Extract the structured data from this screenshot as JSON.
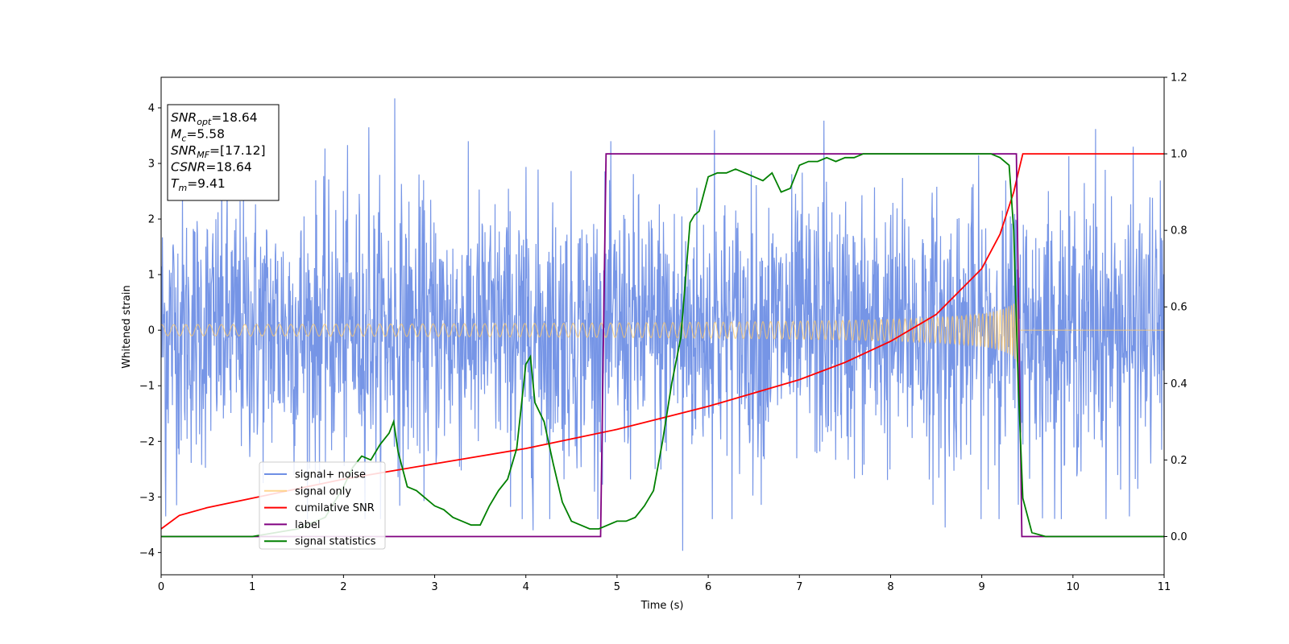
{
  "chart_data": {
    "type": "line",
    "xlabel": "Time (s)",
    "ylabel": "Whitened strain",
    "xlim": [
      0,
      11
    ],
    "ylim": [
      -4.4,
      4.55
    ],
    "y2lim": [
      -0.1,
      1.2
    ],
    "x_ticks": [
      0,
      1,
      2,
      3,
      4,
      5,
      6,
      7,
      8,
      9,
      10,
      11
    ],
    "y_ticks": [
      -4,
      -3,
      -2,
      -1,
      0,
      1,
      2,
      3,
      4
    ],
    "y2_ticks": [
      0.0,
      0.2,
      0.4,
      0.6,
      0.8,
      1.0,
      1.2
    ],
    "grid": false,
    "legend_position": "lower-left",
    "info_box": {
      "lines": [
        {
          "name": "SNR",
          "sub": "opt",
          "value": "=18.64"
        },
        {
          "name": "M",
          "sub": "c",
          "value": "=5.58"
        },
        {
          "name": "SNR",
          "sub": "MF",
          "value": "=[17.12]"
        },
        {
          "name": "CSNR",
          "sub": "",
          "value": "=18.64"
        },
        {
          "name": "T",
          "sub": "m",
          "value": "=9.41"
        }
      ]
    },
    "series": [
      {
        "name": "signal+ noise",
        "color": "#6f8fe5",
        "axis": "left",
        "description_kind": "noise band",
        "envelope": {
          "t_start": 0,
          "t_end": 11,
          "typical_range": [
            -2.4,
            2.4
          ],
          "peaks": [
            {
              "x": 2.28,
              "y": 3.65
            },
            {
              "x": 2.56,
              "y": 4.17
            },
            {
              "x": 7.27,
              "y": 3.77
            },
            {
              "x": 6.07,
              "y": 3.6
            },
            {
              "x": 10.25,
              "y": 3.62
            },
            {
              "x": 8.6,
              "y": 3.3
            },
            {
              "x": 5.72,
              "y": -3.97
            },
            {
              "x": 4.08,
              "y": -3.6
            },
            {
              "x": 8.6,
              "y": -3.55
            },
            {
              "x": 0.05,
              "y": -3.35
            },
            {
              "x": 3.96,
              "y": -3.4
            },
            {
              "x": 10.62,
              "y": -3.35
            }
          ]
        }
      },
      {
        "name": "signal only",
        "color": "#ffc96b",
        "axis": "left",
        "description_kind": "chirp",
        "chirp": {
          "t_start": 0,
          "t_merge": 9.41,
          "amplitude_start": 0.1,
          "amplitude_end": 1.0
        }
      },
      {
        "name": "cumilative SNR",
        "color": "#ff0000",
        "axis": "right",
        "x": [
          0,
          0.2,
          0.5,
          1,
          1.5,
          2,
          2.5,
          3,
          3.5,
          4,
          4.5,
          5,
          5.5,
          6,
          6.5,
          7,
          7.5,
          8,
          8.5,
          9,
          9.2,
          9.35,
          9.41,
          9.45,
          11
        ],
        "y": [
          0.02,
          0.055,
          0.075,
          0.1,
          0.125,
          0.15,
          0.17,
          0.19,
          0.21,
          0.23,
          0.255,
          0.28,
          0.31,
          0.34,
          0.375,
          0.41,
          0.455,
          0.51,
          0.58,
          0.7,
          0.79,
          0.9,
          0.96,
          1.0,
          1.0
        ]
      },
      {
        "name": "label",
        "color": "#800080",
        "axis": "right",
        "x": [
          0,
          4.82,
          4.88,
          9.38,
          9.44,
          11
        ],
        "y": [
          0,
          0,
          1,
          1,
          0,
          0
        ]
      },
      {
        "name": "signal statistics",
        "color": "#008000",
        "axis": "right",
        "x": [
          0,
          1.0,
          1.5,
          1.8,
          2.0,
          2.1,
          2.2,
          2.3,
          2.4,
          2.5,
          2.55,
          2.6,
          2.7,
          2.8,
          2.9,
          3.0,
          3.1,
          3.2,
          3.3,
          3.4,
          3.5,
          3.6,
          3.7,
          3.8,
          3.9,
          4.0,
          4.05,
          4.1,
          4.2,
          4.3,
          4.4,
          4.5,
          4.6,
          4.7,
          4.8,
          4.9,
          5.0,
          5.1,
          5.2,
          5.3,
          5.4,
          5.5,
          5.6,
          5.7,
          5.8,
          5.85,
          5.9,
          6.0,
          6.1,
          6.2,
          6.3,
          6.4,
          6.5,
          6.6,
          6.7,
          6.8,
          6.9,
          7.0,
          7.1,
          7.2,
          7.3,
          7.4,
          7.5,
          7.6,
          7.7,
          7.8,
          7.9,
          8.0,
          8.2,
          8.4,
          8.6,
          8.8,
          9.0,
          9.1,
          9.2,
          9.3,
          9.35,
          9.4,
          9.45,
          9.55,
          9.7,
          11
        ],
        "y": [
          0.0,
          0.0,
          0.02,
          0.05,
          0.13,
          0.18,
          0.21,
          0.2,
          0.24,
          0.27,
          0.3,
          0.22,
          0.13,
          0.12,
          0.1,
          0.08,
          0.07,
          0.05,
          0.04,
          0.03,
          0.03,
          0.08,
          0.12,
          0.15,
          0.23,
          0.45,
          0.47,
          0.35,
          0.3,
          0.19,
          0.09,
          0.04,
          0.03,
          0.02,
          0.02,
          0.03,
          0.04,
          0.04,
          0.05,
          0.08,
          0.12,
          0.25,
          0.4,
          0.52,
          0.82,
          0.84,
          0.85,
          0.94,
          0.95,
          0.95,
          0.96,
          0.95,
          0.94,
          0.93,
          0.95,
          0.9,
          0.91,
          0.97,
          0.98,
          0.98,
          0.99,
          0.98,
          0.99,
          0.99,
          1.0,
          1.0,
          1.0,
          1.0,
          1.0,
          1.0,
          1.0,
          1.0,
          1.0,
          1.0,
          0.99,
          0.97,
          0.8,
          0.4,
          0.1,
          0.01,
          0.0,
          0.0
        ]
      }
    ]
  }
}
